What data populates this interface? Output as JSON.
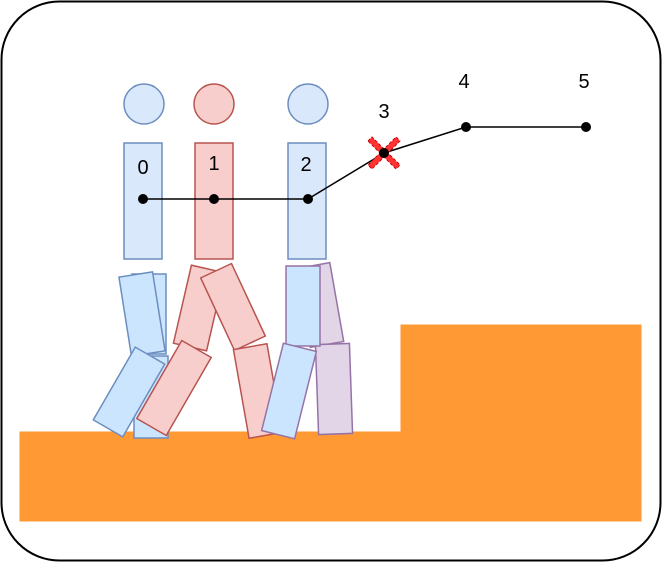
{
  "figure": {
    "colors": {
      "frame_stroke": "#000000",
      "ground_fill": "#FF9933",
      "blue_fill": "#DAE8FC",
      "blue_stroke": "#6C8EBF",
      "blue_leg_fill": "#CCE5FF",
      "red_fill": "#F8CECC",
      "red_stroke": "#B85450",
      "purple_leg_fill": "#E1D5E7",
      "purple_leg_stroke": "#9673A6",
      "path_color": "#000000",
      "marker_red": "#FF3333"
    },
    "figures": [
      {
        "label": "0",
        "theme": "blue"
      },
      {
        "label": "1",
        "theme": "red"
      },
      {
        "label": "2",
        "theme": "blue"
      }
    ],
    "waypoints": [
      {
        "label": "0"
      },
      {
        "label": "1"
      },
      {
        "label": "2"
      },
      {
        "label": "3",
        "marker": "red-x-icon"
      },
      {
        "label": "4"
      },
      {
        "label": "5"
      }
    ]
  }
}
